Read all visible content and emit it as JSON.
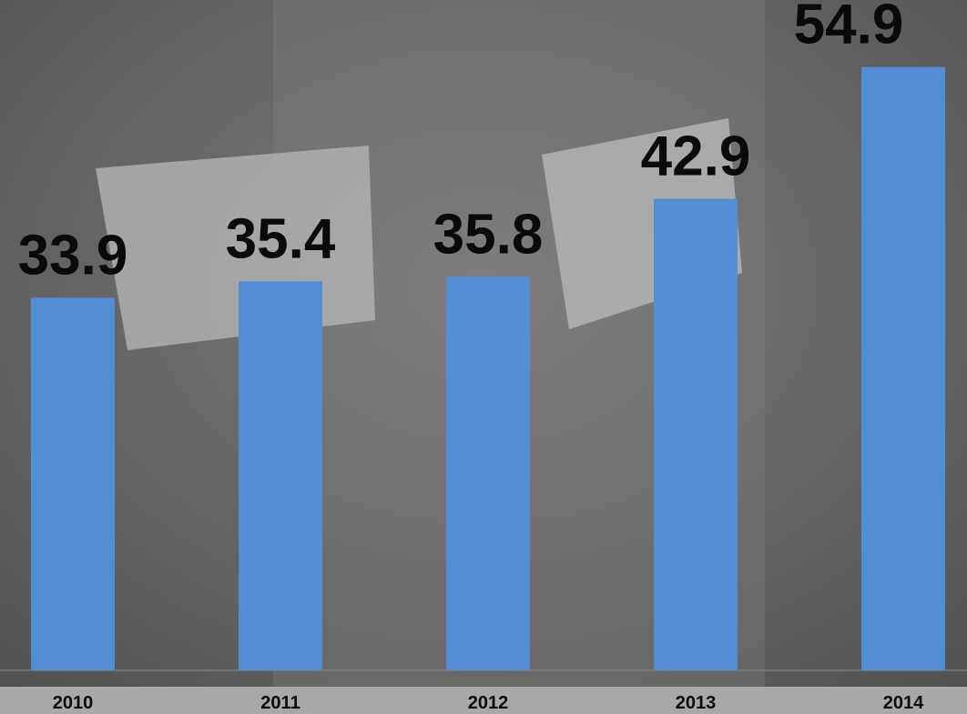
{
  "chart_data": {
    "type": "bar",
    "categories": [
      "2010",
      "2011",
      "2012",
      "2013",
      "2014"
    ],
    "values": [
      33.9,
      35.4,
      35.8,
      42.9,
      54.9
    ],
    "color": "#548dd4",
    "ylim": [
      0,
      60
    ]
  }
}
